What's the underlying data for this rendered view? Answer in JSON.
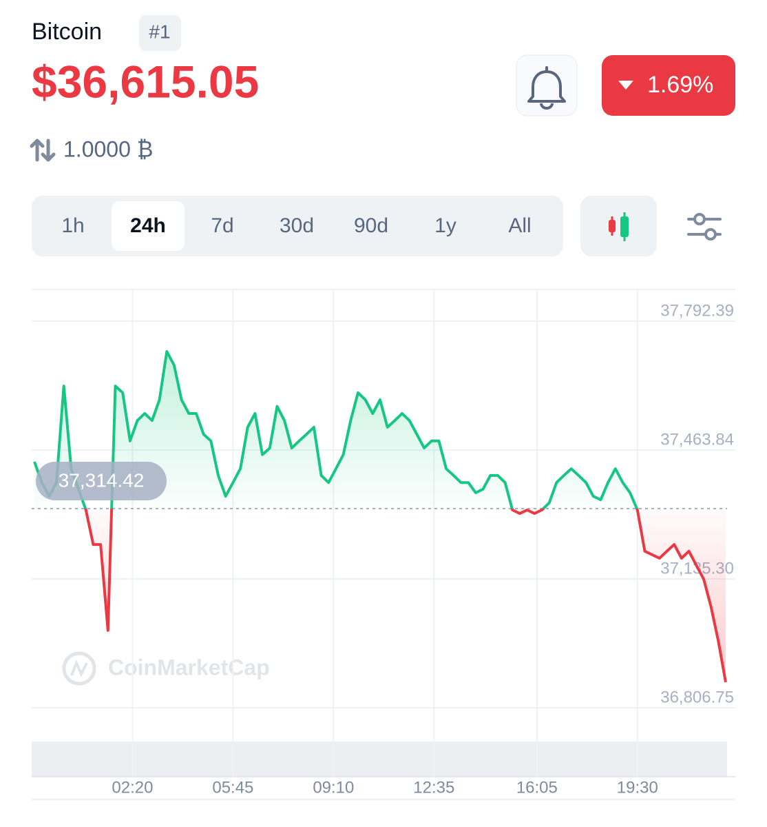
{
  "header": {
    "name": "Bitcoin",
    "rank": "#1",
    "price": "$36,615.05",
    "change": "1.69%",
    "amount": "1.0000 ₿"
  },
  "timeframes": [
    "1h",
    "24h",
    "7d",
    "30d",
    "90d",
    "1y",
    "All"
  ],
  "selected_timeframe": 1,
  "watermark": "CoinMarketCap",
  "chart_data": {
    "type": "line",
    "up_color": "#16c784",
    "down_color": "#ea3943",
    "baseline": {
      "value": 37314.42,
      "label": "37,314.42"
    },
    "x": [
      "23:00",
      "23:15",
      "23:30",
      "23:45",
      "00:00",
      "00:15",
      "00:30",
      "00:45",
      "01:00",
      "01:15",
      "01:30",
      "01:45",
      "02:00",
      "02:15",
      "02:30",
      "02:45",
      "03:00",
      "03:15",
      "03:30",
      "03:45",
      "04:00",
      "04:15",
      "04:30",
      "04:45",
      "05:00",
      "05:15",
      "05:30",
      "05:45",
      "06:00",
      "06:15",
      "06:30",
      "06:45",
      "07:00",
      "07:15",
      "07:30",
      "07:45",
      "08:00",
      "08:15",
      "08:30",
      "08:45",
      "09:00",
      "09:15",
      "09:30",
      "09:45",
      "10:00",
      "10:15",
      "10:30",
      "10:45",
      "11:00",
      "11:15",
      "11:30",
      "11:45",
      "12:00",
      "12:15",
      "12:30",
      "12:45",
      "13:00",
      "13:15",
      "13:30",
      "13:45",
      "14:00",
      "14:15",
      "14:30",
      "14:45",
      "15:00",
      "15:15",
      "15:30",
      "15:45",
      "16:00",
      "16:15",
      "16:30",
      "16:45",
      "17:00",
      "17:15",
      "17:30",
      "17:45",
      "18:00",
      "18:15",
      "18:30",
      "18:45",
      "19:00",
      "19:15",
      "19:30",
      "19:45",
      "20:00",
      "20:15",
      "20:30",
      "20:45",
      "21:00",
      "21:15",
      "21:30",
      "21:45",
      "22:00",
      "22:15",
      "22:30"
    ],
    "values": [
      37434,
      37381,
      37346,
      37381,
      37627,
      37416,
      37364,
      37311,
      37223,
      37223,
      37004,
      37627,
      37610,
      37487,
      37539,
      37557,
      37539,
      37592,
      37715,
      37680,
      37592,
      37557,
      37557,
      37504,
      37487,
      37399,
      37346,
      37381,
      37416,
      37522,
      37557,
      37452,
      37469,
      37575,
      37539,
      37469,
      37487,
      37504,
      37522,
      37399,
      37381,
      37416,
      37452,
      37539,
      37610,
      37592,
      37557,
      37592,
      37522,
      37539,
      37557,
      37539,
      37504,
      37469,
      37487,
      37487,
      37416,
      37399,
      37381,
      37381,
      37355,
      37364,
      37399,
      37399,
      37381,
      37311,
      37302,
      37311,
      37302,
      37311,
      37329,
      37381,
      37399,
      37416,
      37399,
      37381,
      37346,
      37337,
      37381,
      37416,
      37381,
      37355,
      37311,
      37206,
      37197,
      37188,
      37206,
      37223,
      37188,
      37206,
      37170,
      37135,
      37065,
      36977,
      36872
    ],
    "ylim": [
      36806.75,
      37792.39
    ],
    "yticks": [
      {
        "value": 37792.39,
        "label": "37,792.39"
      },
      {
        "value": 37463.84,
        "label": "37,463.84"
      },
      {
        "value": 37135.3,
        "label": "37,135.30"
      },
      {
        "value": 36806.75,
        "label": "36,806.75"
      }
    ],
    "xticks": [
      "02:20",
      "05:45",
      "09:10",
      "12:35",
      "16:05",
      "19:30"
    ],
    "grid": true
  }
}
